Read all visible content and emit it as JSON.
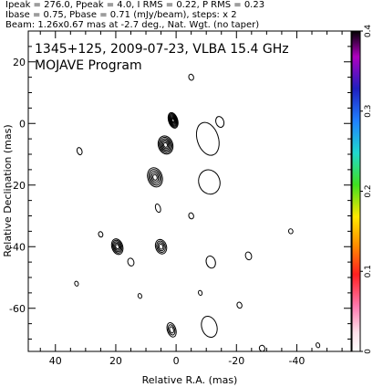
{
  "header": {
    "line1": "Ipeak = 276.0, Ppeak = 4.0, I RMS = 0.22, P RMS = 0.23",
    "line2": "Ibase = 0.75, Pbase = 0.71 (mJy/beam), steps: x 2",
    "line3": "Beam: 1.26x0.67 mas at -2.7 deg., Nat. Wgt. (no taper)"
  },
  "chart_data": {
    "type": "contour",
    "title": "1345+125, 2009-07-23, VLBA 15.4 GHz",
    "subtitle": "MOJAVE Program",
    "xlabel": "Relative R.A. (mas)",
    "ylabel": "Relative Declination (mas)",
    "xlim": [
      49,
      -58
    ],
    "ylim": [
      -74,
      30
    ],
    "xticks": [
      40,
      20,
      0,
      -20,
      -40
    ],
    "yticks": [
      20,
      0,
      -20,
      -40,
      -60
    ],
    "colorbar": {
      "min": 0,
      "max": 0.4,
      "ticks": [
        0,
        0.1,
        0.2,
        0.3,
        0.4
      ]
    },
    "components": [
      {
        "x": 1.0,
        "y": 1.0,
        "rx": 1.5,
        "ry": 2.6,
        "rings": 7
      },
      {
        "x": 3.5,
        "y": -7.0,
        "rx": 2.4,
        "ry": 3.0,
        "rings": 6
      },
      {
        "x": 7.0,
        "y": -17.5,
        "rx": 2.4,
        "ry": 3.2,
        "rings": 5
      },
      {
        "x": 19.5,
        "y": -40.0,
        "rx": 1.8,
        "ry": 2.6,
        "rings": 5
      },
      {
        "x": 5.0,
        "y": -40.0,
        "rx": 1.8,
        "ry": 2.4,
        "rings": 4
      },
      {
        "x": 1.5,
        "y": -67.0,
        "rx": 1.4,
        "ry": 2.4,
        "rings": 3
      },
      {
        "x": -11.0,
        "y": -19.0,
        "rx": 3.5,
        "ry": 4.0,
        "rings": 1
      },
      {
        "x": -10.5,
        "y": -5.0,
        "rx": 3.5,
        "ry": 5.5,
        "rings": 1
      },
      {
        "x": -11.0,
        "y": -66.0,
        "rx": 2.5,
        "ry": 3.5,
        "rings": 1
      },
      {
        "x": -11.5,
        "y": -45.0,
        "rx": 1.5,
        "ry": 2.0,
        "rings": 1
      },
      {
        "x": -14.5,
        "y": 0.5,
        "rx": 1.3,
        "ry": 1.8,
        "rings": 1
      },
      {
        "x": -24.0,
        "y": -43.0,
        "rx": 1.0,
        "ry": 1.3,
        "rings": 1
      },
      {
        "x": 15.0,
        "y": -45.0,
        "rx": 1.0,
        "ry": 1.3,
        "rings": 1
      },
      {
        "x": 32.0,
        "y": -9.0,
        "rx": 0.8,
        "ry": 1.2,
        "rings": 1
      },
      {
        "x": -5.0,
        "y": -30.0,
        "rx": 0.8,
        "ry": 1.0,
        "rings": 1
      },
      {
        "x": -5.0,
        "y": 15.0,
        "rx": 0.8,
        "ry": 1.0,
        "rings": 1
      },
      {
        "x": 6.0,
        "y": -27.5,
        "rx": 0.8,
        "ry": 1.4,
        "rings": 1
      },
      {
        "x": 25.0,
        "y": -36.0,
        "rx": 0.7,
        "ry": 0.9,
        "rings": 1
      },
      {
        "x": -21.0,
        "y": -59.0,
        "rx": 0.8,
        "ry": 1.0,
        "rings": 1
      },
      {
        "x": -28.5,
        "y": -73.0,
        "rx": 0.9,
        "ry": 1.0,
        "rings": 1
      },
      {
        "x": -8.0,
        "y": -55.0,
        "rx": 0.6,
        "ry": 0.8,
        "rings": 1
      },
      {
        "x": 33.0,
        "y": -52.0,
        "rx": 0.6,
        "ry": 0.8,
        "rings": 1
      },
      {
        "x": -38.0,
        "y": -35.0,
        "rx": 0.7,
        "ry": 0.8,
        "rings": 1
      },
      {
        "x": 12.0,
        "y": -56.0,
        "rx": 0.6,
        "ry": 0.8,
        "rings": 1
      },
      {
        "x": -47.0,
        "y": -72.0,
        "rx": 0.6,
        "ry": 0.8,
        "rings": 1
      }
    ]
  }
}
